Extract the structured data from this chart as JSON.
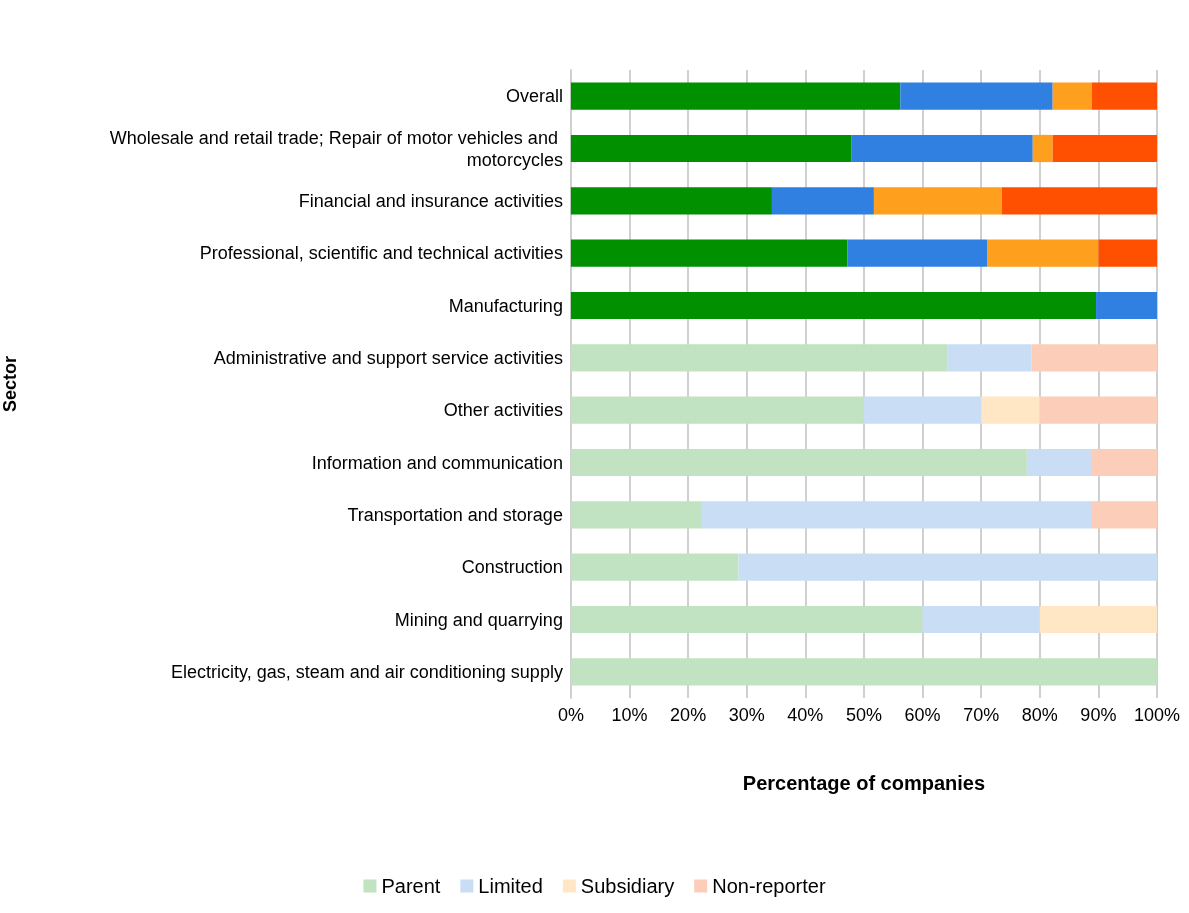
{
  "chart_data": {
    "type": "bar",
    "orientation": "horizontal",
    "stacked": true,
    "xlabel": "Percentage of companies",
    "ylabel": "Sector",
    "categories": [
      "Overall",
      "Wholesale and retail trade; Repair of motor vehicles and motorcycles",
      "Financial and insurance activities",
      "Professional, scientific and technical activities",
      "Manufacturing",
      "Administrative and support service activities",
      "Other activities",
      "Information and communication",
      "Transportation and storage",
      "Construction",
      "Mining and quarrying",
      "Electricity, gas, steam and air conditioning supply"
    ],
    "series": [
      {
        "name": "Parent",
        "color": "#c1e3c1",
        "colors": [
          "#009000",
          "#009000",
          "#009000",
          "#009000",
          "#009000",
          "#c1e3c1",
          "#c1e3c1",
          "#c1e3c1",
          "#c1e3c1",
          "#c1e3c1",
          "#c1e3c1",
          "#c1e3c1"
        ],
        "values": [
          56.2,
          47.9,
          34.3,
          47.2,
          89.6,
          64.3,
          50,
          77.8,
          22.2,
          28.6,
          60,
          100
        ]
      },
      {
        "name": "Limited",
        "color": "#c9ddf5",
        "colors": [
          "#2f80e0",
          "#2f80e0",
          "#2f80e0",
          "#2f80e0",
          "#2f80e0",
          "#c9ddf5",
          "#c9ddf5",
          "#c9ddf5",
          "#c9ddf5",
          "#c9ddf5",
          "#c9ddf5",
          "#c9ddf5"
        ],
        "values": [
          26,
          30.9,
          17.4,
          23.8,
          10.4,
          14.3,
          20,
          11.1,
          66.7,
          71.4,
          20,
          0
        ]
      },
      {
        "name": "Subsidiary",
        "color": "#ffe6c4",
        "colors": [
          "#ff9f1e",
          "#ff9f1e",
          "#ff9f1e",
          "#ff9f1e",
          "#ff9f1e",
          "#ffe6c4",
          "#ffe6c4",
          "#ffe6c4",
          "#ffe6c4",
          "#ffe6c4",
          "#ffe6c4",
          "#ffe6c4"
        ],
        "values": [
          6.7,
          3.4,
          21.8,
          19,
          0,
          0,
          10,
          0,
          0,
          0,
          20,
          0
        ]
      },
      {
        "name": "Non-reporter",
        "color": "#fccdb8",
        "colors": [
          "#ff4f00",
          "#ff4f00",
          "#ff4f00",
          "#ff4f00",
          "#ff4f00",
          "#fccdb8",
          "#fccdb8",
          "#fccdb8",
          "#fccdb8",
          "#fccdb8",
          "#fccdb8",
          "#fccdb8"
        ],
        "values": [
          11.1,
          17.8,
          26.5,
          10,
          0,
          21.4,
          20,
          11.1,
          11.1,
          0,
          0,
          0
        ]
      }
    ],
    "xlim": [
      0,
      100
    ],
    "xticks": [
      {
        "value": 0,
        "label": "0%"
      },
      {
        "value": 10,
        "label": "10%"
      },
      {
        "value": 20,
        "label": "20%"
      },
      {
        "value": 30,
        "label": "30%"
      },
      {
        "value": 40,
        "label": "40%"
      },
      {
        "value": 50,
        "label": "50%"
      },
      {
        "value": 60,
        "label": "60%"
      },
      {
        "value": 70,
        "label": "70%"
      },
      {
        "value": 80,
        "label": "80%"
      },
      {
        "value": 90,
        "label": "90%"
      },
      {
        "value": 100,
        "label": "100%"
      }
    ],
    "grid": "x",
    "legend": "bottom"
  }
}
